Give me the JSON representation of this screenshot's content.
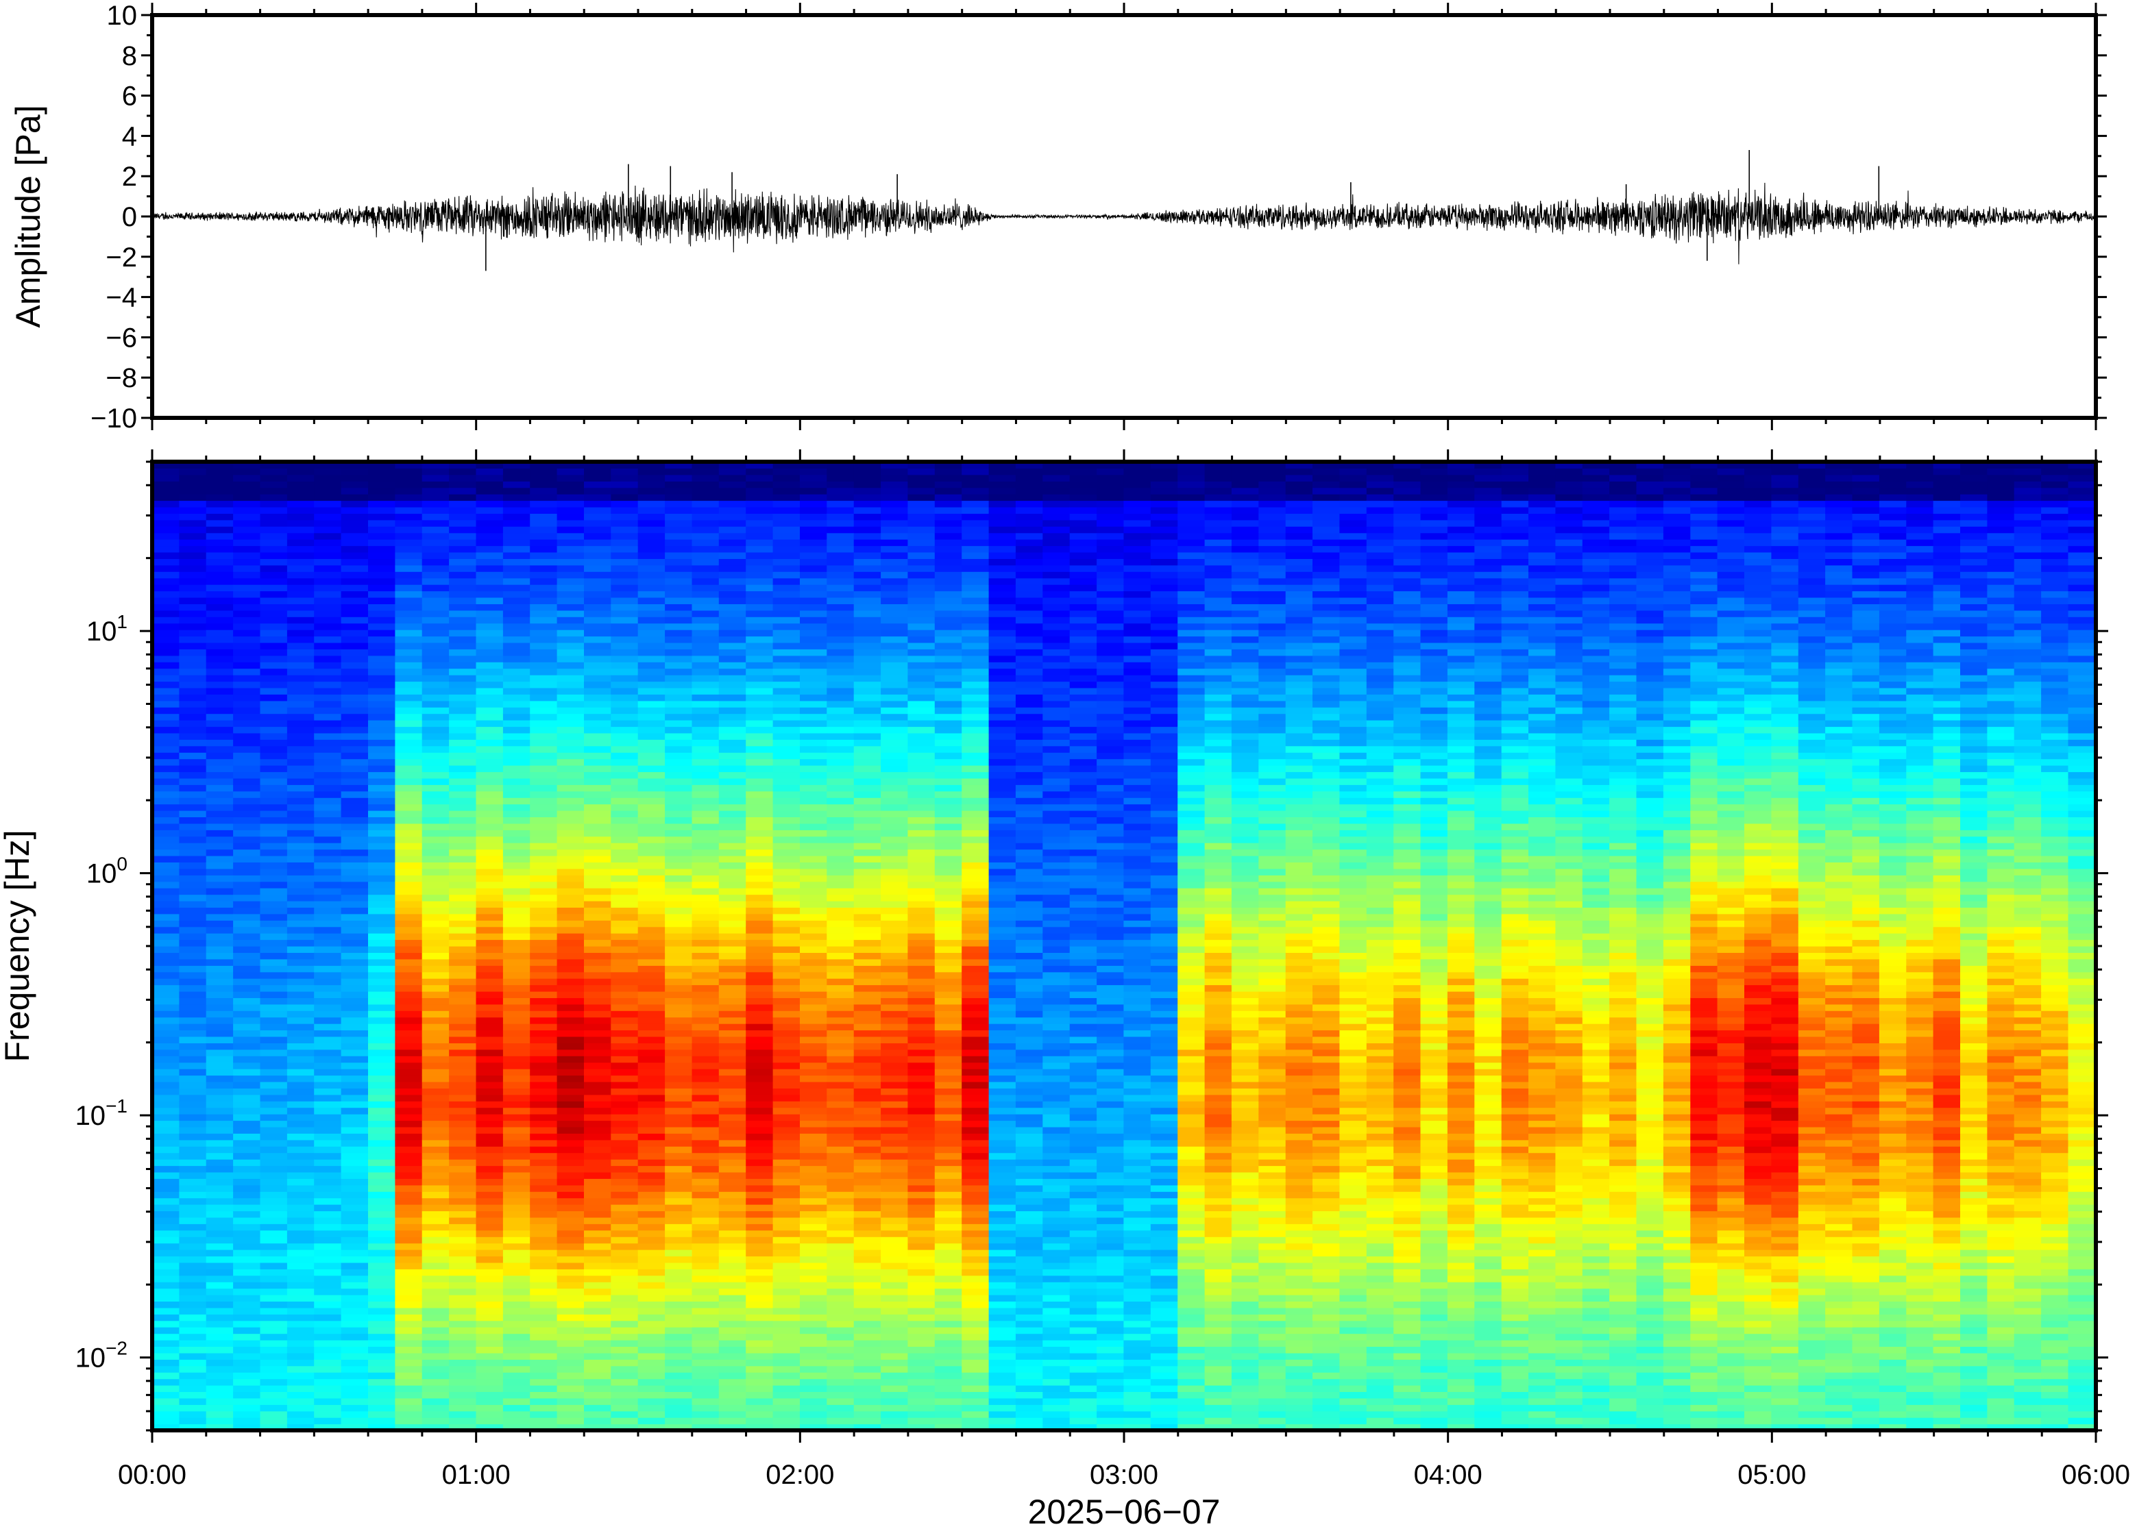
{
  "chart_data": [
    {
      "type": "line",
      "panel": "waveform",
      "ylabel": "Amplitude [Pa]",
      "ylim": [
        -10,
        10
      ],
      "yticks": [
        10,
        8,
        6,
        4,
        2,
        0,
        -2,
        -4,
        -6,
        -8,
        -10
      ],
      "ytick_labels": [
        "10",
        "8",
        "6",
        "4",
        "2",
        "0",
        "−2",
        "−4",
        "−6",
        "−8",
        "−10"
      ],
      "x_range_hours": [
        0,
        6
      ],
      "grid": false,
      "series": [
        {
          "envelope_hours": [
            0,
            0.5,
            0.75,
            1.0,
            1.5,
            2.0,
            2.5,
            2.6,
            3.0,
            3.1,
            3.5,
            4.0,
            4.5,
            4.8,
            5.2,
            5.5,
            6.0
          ],
          "envelope_pa": [
            0.2,
            0.3,
            0.9,
            1.2,
            1.6,
            1.4,
            0.8,
            0.1,
            0.1,
            0.3,
            0.8,
            0.7,
            1.0,
            1.6,
            1.0,
            0.7,
            0.3
          ],
          "spikes_hours": [
            1.03,
            1.47,
            1.6,
            1.79,
            2.3,
            3.7,
            4.55,
            4.8,
            4.93,
            5.33
          ],
          "spikes_pa": [
            -2.7,
            2.6,
            2.5,
            2.2,
            2.1,
            1.7,
            1.6,
            -2.2,
            3.3,
            2.5
          ]
        }
      ]
    },
    {
      "type": "heatmap",
      "panel": "spectrogram",
      "ylabel": "Frequency [Hz]",
      "y_scale": "log",
      "ylim": [
        0.005,
        50
      ],
      "yticks": [
        0.01,
        0.1,
        1,
        10
      ],
      "ytick_labels": [
        {
          "base": "10",
          "exp": "−2"
        },
        {
          "base": "10",
          "exp": "−1"
        },
        {
          "base": "10",
          "exp": "0"
        },
        {
          "base": "10",
          "exp": "1"
        }
      ],
      "xlabel": "2025−06−07",
      "x_range_hours": [
        0,
        6
      ],
      "xticks_hours": [
        0,
        1,
        2,
        3,
        4,
        5,
        6
      ],
      "xtick_labels": [
        "00:00",
        "01:00",
        "02:00",
        "03:00",
        "04:00",
        "05:00",
        "06:00"
      ],
      "colormap": "jet",
      "colormap_stops": [
        "#00007f",
        "#0000ff",
        "#007fff",
        "#00ffff",
        "#7fff7f",
        "#ffff00",
        "#ff7f00",
        "#ff0000",
        "#7f0000"
      ],
      "column_width_hours": 0.0833,
      "activity_profile_hours": [
        0,
        0.7,
        0.75,
        2.55,
        2.6,
        3.15,
        3.2,
        4.4,
        4.5,
        4.75,
        4.8,
        5.3,
        6.0
      ],
      "activity_profile_level": [
        0.0,
        0.05,
        0.85,
        0.8,
        0.0,
        0.0,
        0.65,
        0.6,
        0.55,
        0.6,
        0.9,
        0.75,
        0.55
      ],
      "peak_band_hz": [
        0.05,
        0.3
      ]
    }
  ]
}
